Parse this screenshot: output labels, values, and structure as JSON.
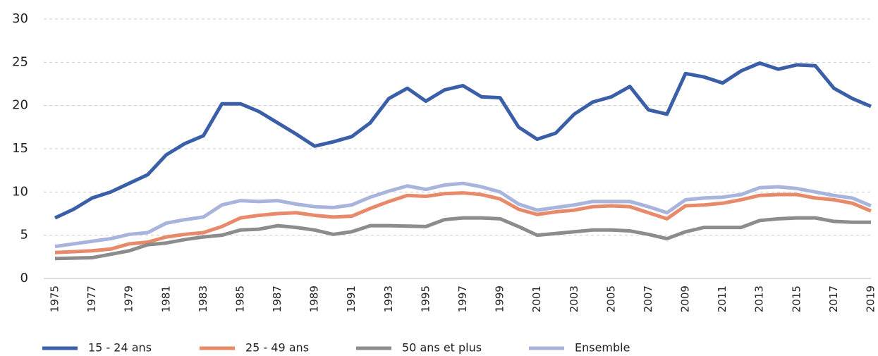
{
  "chart_data": {
    "type": "line",
    "x": [
      1975,
      1976,
      1977,
      1978,
      1979,
      1980,
      1981,
      1982,
      1983,
      1984,
      1985,
      1986,
      1987,
      1988,
      1989,
      1990,
      1991,
      1992,
      1993,
      1994,
      1995,
      1996,
      1997,
      1998,
      1999,
      2000,
      2001,
      2002,
      2003,
      2004,
      2005,
      2006,
      2007,
      2008,
      2009,
      2010,
      2011,
      2012,
      2013,
      2014,
      2015,
      2016,
      2017,
      2018,
      2019
    ],
    "series": [
      {
        "name": "15 - 24 ans",
        "color": "#3a5fa8",
        "values": [
          7.0,
          8.0,
          9.3,
          10.0,
          11.0,
          12.0,
          14.3,
          15.6,
          16.5,
          20.2,
          20.2,
          19.3,
          18.0,
          16.7,
          15.3,
          15.8,
          16.4,
          18.0,
          20.8,
          22.0,
          20.5,
          21.8,
          22.3,
          21.0,
          20.9,
          17.5,
          16.1,
          16.8,
          19.0,
          20.4,
          21.0,
          22.2,
          19.5,
          19.0,
          23.7,
          23.3,
          22.6,
          24.0,
          24.9,
          24.2,
          24.7,
          24.6,
          22.0,
          20.8,
          19.9
        ]
      },
      {
        "name": "25 - 49 ans",
        "color": "#e8896a",
        "values": [
          3.0,
          3.1,
          3.2,
          3.4,
          4.0,
          4.2,
          4.8,
          5.1,
          5.3,
          6.0,
          7.0,
          7.3,
          7.5,
          7.6,
          7.3,
          7.1,
          7.2,
          8.1,
          8.9,
          9.6,
          9.5,
          9.8,
          9.9,
          9.7,
          9.2,
          8.0,
          7.4,
          7.7,
          7.9,
          8.3,
          8.4,
          8.3,
          7.6,
          6.9,
          8.4,
          8.5,
          8.7,
          9.1,
          9.6,
          9.7,
          9.7,
          9.3,
          9.1,
          8.7,
          7.8
        ]
      },
      {
        "name": "50 ans et plus",
        "color": "#8c8c8c",
        "values": [
          2.3,
          2.35,
          2.4,
          2.8,
          3.2,
          3.9,
          4.1,
          4.5,
          4.8,
          5.0,
          5.6,
          5.7,
          6.1,
          5.9,
          5.6,
          5.1,
          5.4,
          6.1,
          6.1,
          6.05,
          6.0,
          6.8,
          7.0,
          7.0,
          6.9,
          6.0,
          5.0,
          5.2,
          5.4,
          5.6,
          5.6,
          5.5,
          5.1,
          4.6,
          5.4,
          5.9,
          5.9,
          5.9,
          6.7,
          6.9,
          7.0,
          7.0,
          6.6,
          6.5,
          6.5
        ]
      },
      {
        "name": "Ensemble",
        "color": "#a9b4dd",
        "values": [
          3.7,
          4.0,
          4.3,
          4.6,
          5.1,
          5.3,
          6.4,
          6.8,
          7.1,
          8.5,
          9.0,
          8.9,
          9.0,
          8.6,
          8.3,
          8.2,
          8.5,
          9.4,
          10.1,
          10.7,
          10.3,
          10.8,
          11.0,
          10.6,
          10.0,
          8.6,
          7.9,
          8.2,
          8.5,
          8.9,
          8.9,
          8.9,
          8.3,
          7.6,
          9.1,
          9.3,
          9.4,
          9.7,
          10.5,
          10.6,
          10.4,
          10.0,
          9.6,
          9.3,
          8.4
        ]
      }
    ],
    "xlim": [
      1975,
      2019
    ],
    "xticks": [
      1975,
      1977,
      1979,
      1981,
      1983,
      1985,
      1987,
      1989,
      1991,
      1993,
      1995,
      1997,
      1999,
      2001,
      2003,
      2005,
      2007,
      2009,
      2011,
      2013,
      2015,
      2017,
      2019
    ],
    "ylim": [
      0,
      30
    ],
    "yticks": [
      0,
      5,
      10,
      15,
      20,
      25,
      30
    ],
    "grid": true,
    "legend": "bottom"
  }
}
